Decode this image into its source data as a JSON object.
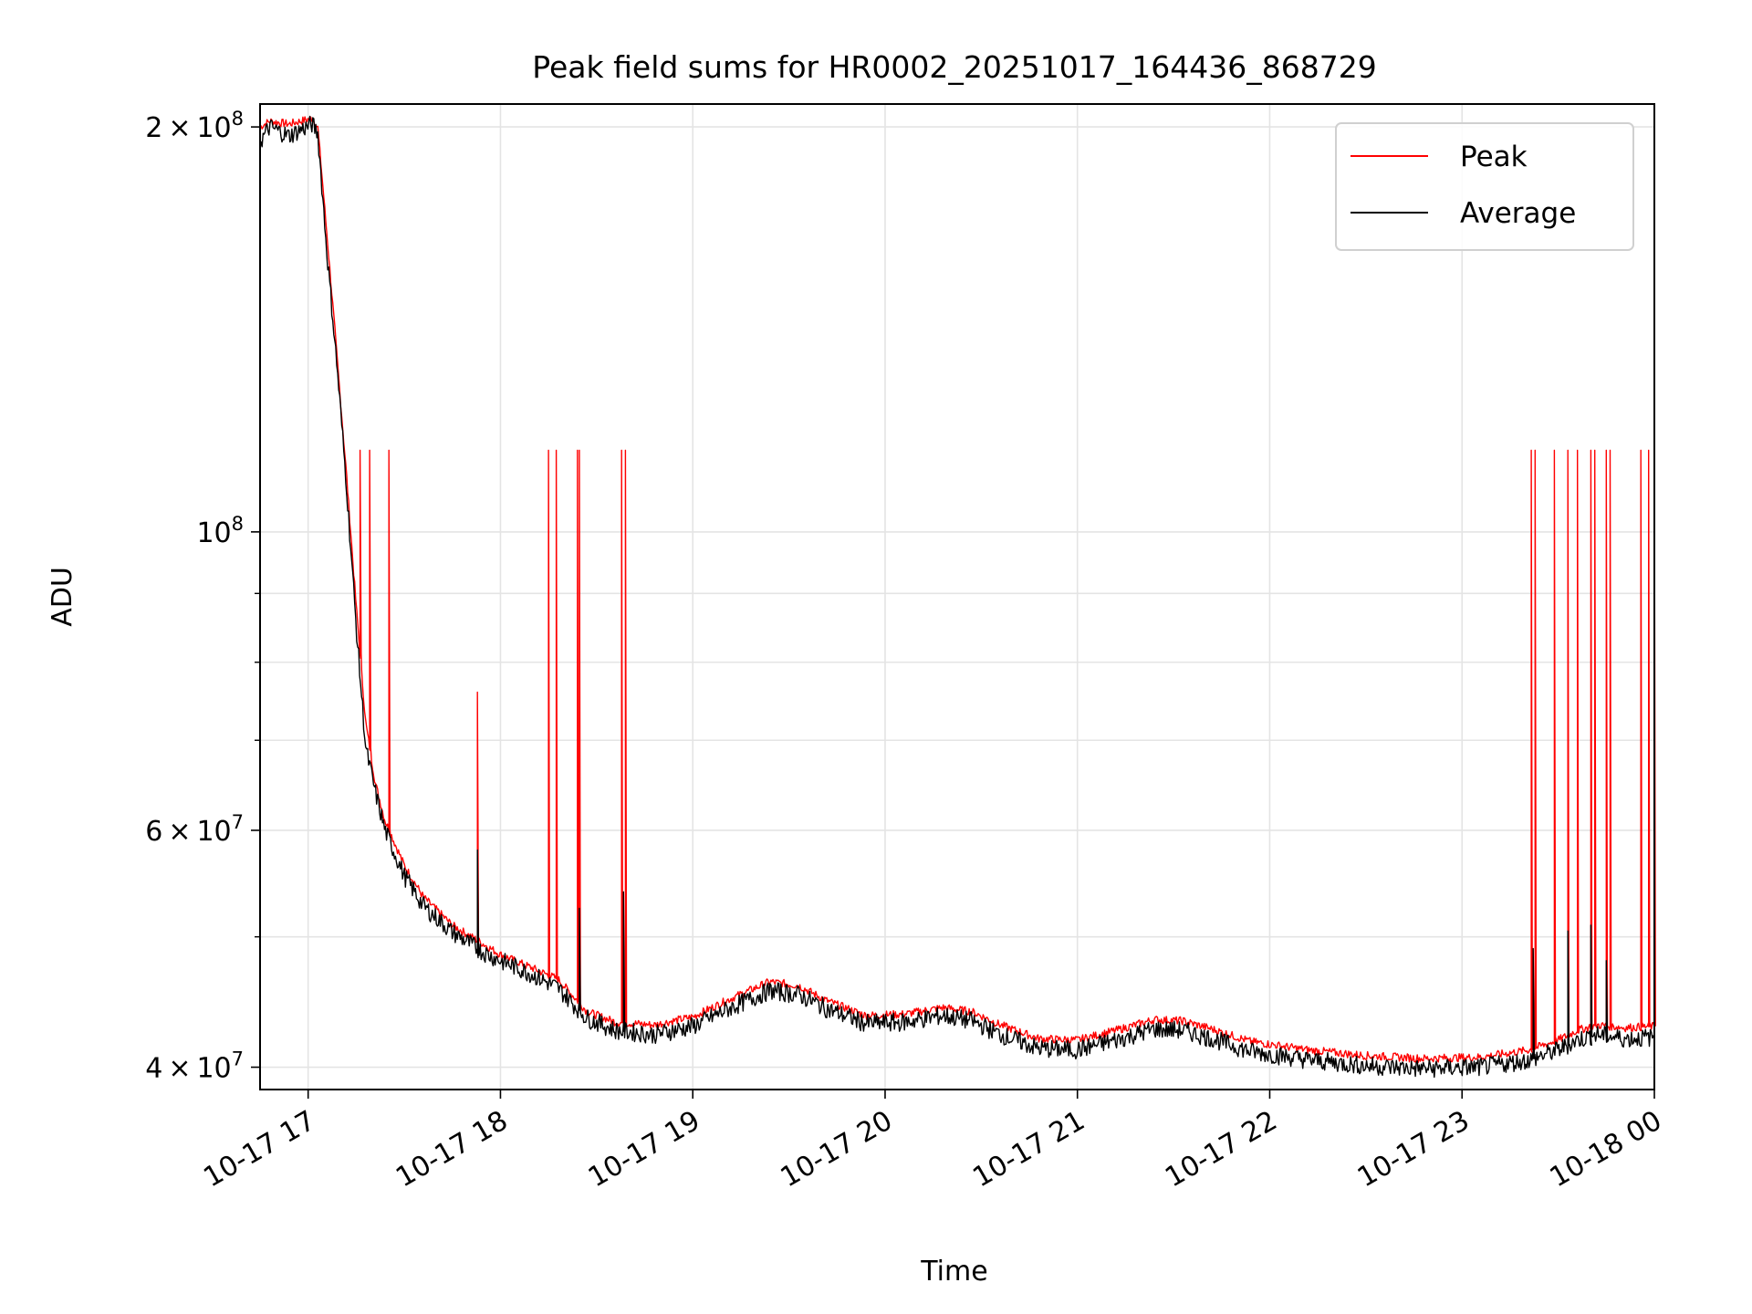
{
  "chart_data": {
    "type": "line",
    "title": "Peak field sums for HR0002_20251017_164436_868729",
    "xlabel": "Time",
    "ylabel": "ADU",
    "yscale": "log",
    "xlim_hours": [
      16.75,
      24.0
    ],
    "ylim": [
      38500000,
      208000000
    ],
    "grid": true,
    "legend_position": "top-right",
    "x_ticks": [
      {
        "value": 17,
        "label": "10-17 17"
      },
      {
        "value": 18,
        "label": "10-17 18"
      },
      {
        "value": 19,
        "label": "10-17 19"
      },
      {
        "value": 20,
        "label": "10-17 20"
      },
      {
        "value": 21,
        "label": "10-17 21"
      },
      {
        "value": 22,
        "label": "10-17 22"
      },
      {
        "value": 23,
        "label": "10-17 23"
      },
      {
        "value": 24,
        "label": "10-18 00"
      }
    ],
    "y_major_ticks": [
      {
        "value": 40000000,
        "mantissa": "4",
        "exponent": "7"
      },
      {
        "value": 60000000,
        "mantissa": "6",
        "exponent": "7"
      },
      {
        "value": 100000000,
        "mantissa": "",
        "exponent": "8"
      },
      {
        "value": 200000000,
        "mantissa": "2",
        "exponent": "8"
      }
    ],
    "y_minor_ticks": [
      50000000,
      70000000,
      80000000,
      90000000
    ],
    "series": [
      {
        "name": "Peak",
        "color": "#ff0000",
        "points": [
          [
            16.75,
            200000000
          ],
          [
            16.8,
            202000000
          ],
          [
            16.9,
            201000000
          ],
          [
            17.02,
            203000000
          ],
          [
            17.05,
            200000000
          ],
          [
            17.1,
            165000000
          ],
          [
            17.15,
            135000000
          ],
          [
            17.2,
            110000000
          ],
          [
            17.25,
            88000000
          ],
          [
            17.3,
            72000000
          ],
          [
            17.35,
            65000000
          ],
          [
            17.4,
            61000000
          ],
          [
            17.5,
            56500000
          ],
          [
            17.6,
            53500000
          ],
          [
            17.75,
            51000000
          ],
          [
            17.9,
            49500000
          ],
          [
            18.0,
            48500000
          ],
          [
            18.15,
            47500000
          ],
          [
            18.3,
            46500000
          ],
          [
            18.45,
            44000000
          ],
          [
            18.6,
            43200000
          ],
          [
            18.8,
            43000000
          ],
          [
            19.0,
            43600000
          ],
          [
            19.2,
            45000000
          ],
          [
            19.4,
            46300000
          ],
          [
            19.55,
            46000000
          ],
          [
            19.7,
            44800000
          ],
          [
            19.9,
            43700000
          ],
          [
            20.1,
            43800000
          ],
          [
            20.3,
            44300000
          ],
          [
            20.45,
            44000000
          ],
          [
            20.6,
            43000000
          ],
          [
            20.8,
            42000000
          ],
          [
            21.0,
            41900000
          ],
          [
            21.2,
            42600000
          ],
          [
            21.4,
            43400000
          ],
          [
            21.55,
            43300000
          ],
          [
            21.7,
            42700000
          ],
          [
            21.9,
            41800000
          ],
          [
            22.2,
            41200000
          ],
          [
            22.5,
            40800000
          ],
          [
            22.8,
            40600000
          ],
          [
            23.1,
            40700000
          ],
          [
            23.35,
            41200000
          ],
          [
            23.5,
            41900000
          ],
          [
            23.6,
            42600000
          ],
          [
            23.7,
            43000000
          ],
          [
            23.85,
            42800000
          ],
          [
            24.0,
            42900000
          ]
        ],
        "spikes": [
          [
            17.27,
            115000000
          ],
          [
            17.32,
            115000000
          ],
          [
            17.42,
            115000000
          ],
          [
            17.88,
            76000000
          ],
          [
            18.25,
            115000000
          ],
          [
            18.29,
            115000000
          ],
          [
            18.4,
            115000000
          ],
          [
            18.41,
            115000000
          ],
          [
            18.63,
            115000000
          ],
          [
            18.65,
            115000000
          ],
          [
            23.36,
            115000000
          ],
          [
            23.38,
            115000000
          ],
          [
            23.48,
            115000000
          ],
          [
            23.55,
            115000000
          ],
          [
            23.6,
            115000000
          ],
          [
            23.67,
            115000000
          ],
          [
            23.69,
            115000000
          ],
          [
            23.75,
            115000000
          ],
          [
            23.77,
            115000000
          ],
          [
            23.93,
            115000000
          ],
          [
            23.97,
            115000000
          ],
          [
            24.0,
            115000000
          ]
        ]
      },
      {
        "name": "Average",
        "color": "#000000",
        "points": [
          [
            16.75,
            195000000
          ],
          [
            16.8,
            200000000
          ],
          [
            16.9,
            197000000
          ],
          [
            17.02,
            201000000
          ],
          [
            17.05,
            198000000
          ],
          [
            17.1,
            160000000
          ],
          [
            17.15,
            133000000
          ],
          [
            17.2,
            108000000
          ],
          [
            17.25,
            85000000
          ],
          [
            17.3,
            69000000
          ],
          [
            17.35,
            64000000
          ],
          [
            17.4,
            60000000
          ],
          [
            17.5,
            55500000
          ],
          [
            17.6,
            52700000
          ],
          [
            17.75,
            50400000
          ],
          [
            17.9,
            48800000
          ],
          [
            18.0,
            48000000
          ],
          [
            18.15,
            47000000
          ],
          [
            18.3,
            45800000
          ],
          [
            18.45,
            43500000
          ],
          [
            18.6,
            42600000
          ],
          [
            18.8,
            42300000
          ],
          [
            19.0,
            42900000
          ],
          [
            19.2,
            44300000
          ],
          [
            19.4,
            45600000
          ],
          [
            19.55,
            45300000
          ],
          [
            19.7,
            44200000
          ],
          [
            19.9,
            43100000
          ],
          [
            20.1,
            43200000
          ],
          [
            20.3,
            43700000
          ],
          [
            20.45,
            43300000
          ],
          [
            20.6,
            42300000
          ],
          [
            20.8,
            41300000
          ],
          [
            21.0,
            41200000
          ],
          [
            21.2,
            41900000
          ],
          [
            21.4,
            42700000
          ],
          [
            21.55,
            42600000
          ],
          [
            21.7,
            42000000
          ],
          [
            21.9,
            41100000
          ],
          [
            22.2,
            40500000
          ],
          [
            22.5,
            40100000
          ],
          [
            22.8,
            39900000
          ],
          [
            23.1,
            40000000
          ],
          [
            23.35,
            40500000
          ],
          [
            23.5,
            41200000
          ],
          [
            23.6,
            41900000
          ],
          [
            23.7,
            42300000
          ],
          [
            23.85,
            42000000
          ],
          [
            24.0,
            42100000
          ]
        ],
        "spikes": [
          [
            17.88,
            58000000
          ],
          [
            18.41,
            52500000
          ],
          [
            18.64,
            54000000
          ],
          [
            23.37,
            49000000
          ],
          [
            23.55,
            50500000
          ],
          [
            23.67,
            51000000
          ],
          [
            23.75,
            48000000
          ]
        ]
      }
    ]
  }
}
